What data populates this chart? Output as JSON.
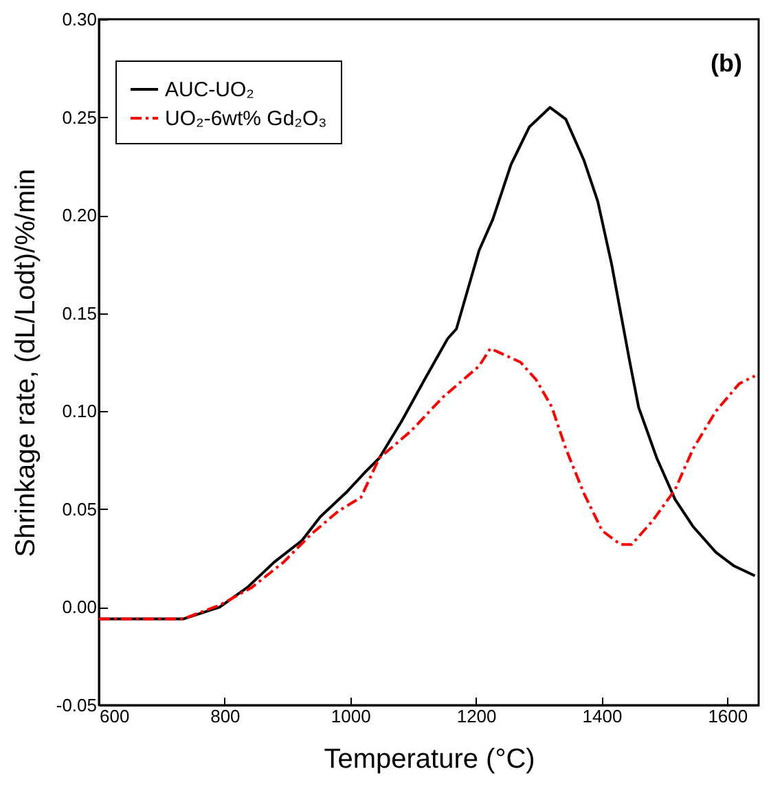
{
  "chart_data": {
    "type": "line",
    "xlabel": "Temperature (°C)",
    "ylabel": "Shrinkage rate, (dL/Lodt)/%/min",
    "xlim": [
      600,
      1650
    ],
    "xticks": [
      600,
      800,
      1000,
      1200,
      1400,
      1600
    ],
    "ylim": [
      -0.05,
      0.3
    ],
    "yticks": [
      {
        "value": -0.05,
        "label": "-0.05"
      },
      {
        "value": 0,
        "label": "0.00"
      },
      0.05,
      {
        "value": 0.1,
        "label": "0.10"
      },
      0.15,
      {
        "value": 0.2,
        "label": "0.20"
      },
      0.25,
      {
        "value": 0.3,
        "label": "0.30"
      }
    ],
    "grid": false,
    "legend": "top left",
    "marker": "none",
    "annotations": [
      "(b)"
    ],
    "series": [
      {
        "name": "AUC-UO₂",
        "color": "#000000",
        "line_style": "solid",
        "x": [
          600,
          734,
          792,
          836,
          879,
          923,
          952,
          995,
          1024,
          1046,
          1082,
          1118,
          1155,
          1169,
          1205,
          1227,
          1256,
          1285,
          1318,
          1343,
          1372,
          1394,
          1416,
          1445,
          1459,
          1488,
          1517,
          1546,
          1582,
          1611,
          1644
        ],
        "values": [
          -0.006,
          -0.006,
          0.0,
          0.01,
          0.023,
          0.034,
          0.046,
          0.059,
          0.069,
          0.076,
          0.095,
          0.116,
          0.137,
          0.142,
          0.182,
          0.198,
          0.226,
          0.245,
          0.255,
          0.249,
          0.228,
          0.207,
          0.175,
          0.125,
          0.102,
          0.076,
          0.055,
          0.041,
          0.028,
          0.021,
          0.016
        ]
      },
      {
        "name": "UO₂-6wt% Gd₂O₃",
        "color": "#ff0000",
        "line_style": "dashdot",
        "x": [
          600,
          734,
          792,
          843,
          894,
          937,
          981,
          1017,
          1046,
          1097,
          1147,
          1205,
          1223,
          1271,
          1296,
          1321,
          1343,
          1372,
          1401,
          1430,
          1448,
          1481,
          1517,
          1546,
          1582,
          1619,
          1644
        ],
        "values": [
          -0.006,
          -0.006,
          0.001,
          0.01,
          0.023,
          0.037,
          0.049,
          0.056,
          0.076,
          0.09,
          0.107,
          0.123,
          0.132,
          0.125,
          0.116,
          0.102,
          0.081,
          0.058,
          0.039,
          0.032,
          0.032,
          0.044,
          0.06,
          0.081,
          0.1,
          0.114,
          0.118
        ]
      }
    ]
  }
}
